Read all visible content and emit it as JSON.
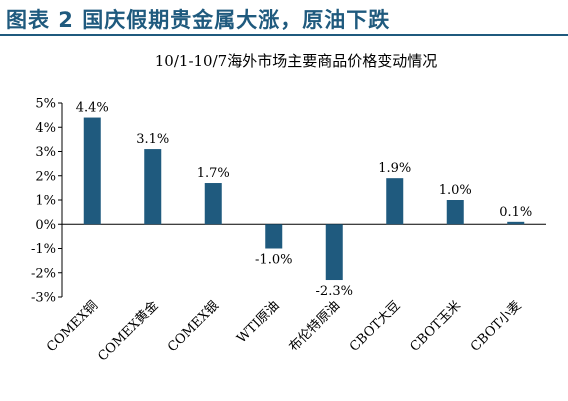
{
  "header": {
    "title": "图表 2  国庆假期贵金属大涨，原油下跌"
  },
  "chart_data": {
    "type": "bar",
    "title": "10/1-10/7海外市场主要商品价格变动情况",
    "categories": [
      "COMEX铜",
      "COMEX黄金",
      "COMEX银",
      "WTI原油",
      "布伦特原油",
      "CBOT大豆",
      "CBOT玉米",
      "CBOT小麦"
    ],
    "values": [
      4.4,
      3.1,
      1.7,
      -1.0,
      -2.3,
      1.9,
      1.0,
      0.1
    ],
    "data_labels": [
      "4.4%",
      "3.1%",
      "1.7%",
      "-1.0%",
      "-2.3%",
      "1.9%",
      "1.0%",
      "0.1%"
    ],
    "ylim": [
      -3,
      5
    ],
    "yticks": [
      5,
      4,
      3,
      2,
      1,
      0,
      -1,
      -2,
      -3
    ],
    "ytick_labels": [
      "5%",
      "4%",
      "3%",
      "2%",
      "1%",
      "0%",
      "-1%",
      "-2%",
      "-3%"
    ],
    "xlabel": "",
    "ylabel": "",
    "grid": false,
    "bar_color": "#1f5a7e"
  }
}
